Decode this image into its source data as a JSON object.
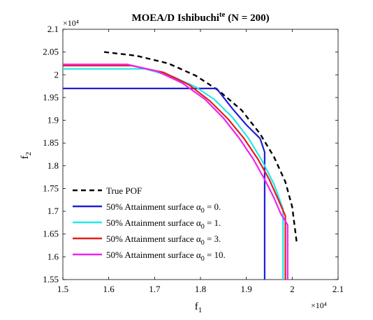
{
  "chart_data": {
    "type": "line",
    "title": {
      "main": "MOEA/D Ishibuchi",
      "sup": "te",
      "rest": " (N = 200)"
    },
    "xlabel": {
      "base": "f",
      "sub": "1"
    },
    "ylabel": {
      "base": "f",
      "sub": "2"
    },
    "x_exponent": "×10⁴",
    "y_exponent": "×10⁴",
    "xlim": [
      15000,
      21000
    ],
    "ylim": [
      15500,
      21000
    ],
    "x_ticks": [
      15000,
      16000,
      17000,
      18000,
      19000,
      20000,
      21000
    ],
    "x_tick_labels": [
      "1.5",
      "1.6",
      "1.7",
      "1.8",
      "1.9",
      "2",
      "2.1"
    ],
    "y_ticks": [
      15500,
      16000,
      16500,
      17000,
      17500,
      18000,
      18500,
      19000,
      19500,
      20000,
      20500,
      21000
    ],
    "y_tick_labels": [
      "1.55",
      "1.6",
      "1.65",
      "1.7",
      "1.75",
      "1.8",
      "1.85",
      "1.9",
      "1.95",
      "2",
      "2.05",
      "2.1"
    ],
    "grid": false,
    "legend_position": "bottom-left",
    "series": [
      {
        "name": "True POF",
        "color": "#000000",
        "dashed": true,
        "points": [
          [
            15900,
            20500
          ],
          [
            16600,
            20420
          ],
          [
            17300,
            20250
          ],
          [
            17900,
            19980
          ],
          [
            18400,
            19650
          ],
          [
            18900,
            19220
          ],
          [
            19300,
            18700
          ],
          [
            19600,
            18200
          ],
          [
            19850,
            17650
          ],
          [
            20000,
            17100
          ],
          [
            20100,
            16300
          ]
        ]
      },
      {
        "name": "50% Attainment surface α",
        "alpha": "0 = 0.",
        "color": "#1f1fd6",
        "points": [
          [
            15000,
            19700
          ],
          [
            18350,
            19700
          ],
          [
            18700,
            19250
          ],
          [
            19000,
            18900
          ],
          [
            19300,
            18600
          ],
          [
            19400,
            18300
          ],
          [
            19400,
            15500
          ]
        ]
      },
      {
        "name": "50% Attainment surface α",
        "alpha": "0 = 1.",
        "color": "#21e8e8",
        "points": [
          [
            15000,
            20130
          ],
          [
            16800,
            20130
          ],
          [
            17400,
            19960
          ],
          [
            17900,
            19730
          ],
          [
            18300,
            19460
          ],
          [
            18700,
            19060
          ],
          [
            19050,
            18600
          ],
          [
            19350,
            18100
          ],
          [
            19600,
            17600
          ],
          [
            19800,
            17050
          ],
          [
            19800,
            15500
          ]
        ]
      },
      {
        "name": "50% Attainment surface α",
        "alpha": "0 = 3.",
        "color": "#e51b1b",
        "points": [
          [
            15000,
            20200
          ],
          [
            16500,
            20200
          ],
          [
            17200,
            20050
          ],
          [
            17750,
            19780
          ],
          [
            18200,
            19430
          ],
          [
            18600,
            19030
          ],
          [
            18950,
            18600
          ],
          [
            19250,
            18150
          ],
          [
            19500,
            17700
          ],
          [
            19700,
            17250
          ],
          [
            19850,
            16900
          ],
          [
            19850,
            15500
          ]
        ]
      },
      {
        "name": "50% Attainment surface α",
        "alpha": "0 = 10.",
        "color": "#ee22ee",
        "points": [
          [
            15000,
            20230
          ],
          [
            16400,
            20230
          ],
          [
            17050,
            20080
          ],
          [
            17600,
            19820
          ],
          [
            18100,
            19460
          ],
          [
            18500,
            19050
          ],
          [
            18850,
            18600
          ],
          [
            19150,
            18150
          ],
          [
            19400,
            17700
          ],
          [
            19600,
            17300
          ],
          [
            19750,
            16950
          ],
          [
            19900,
            16700
          ],
          [
            19900,
            15500
          ]
        ]
      }
    ]
  }
}
